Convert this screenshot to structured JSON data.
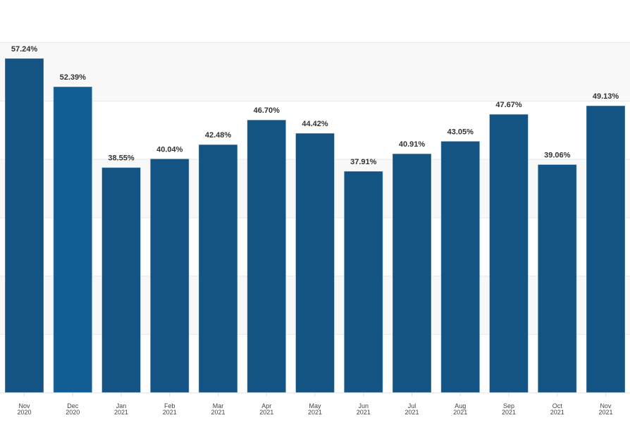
{
  "chart_data": {
    "type": "bar",
    "categories": [
      [
        "Nov",
        "2020"
      ],
      [
        "Dec",
        "2020"
      ],
      [
        "Jan",
        "2021"
      ],
      [
        "Feb",
        "2021"
      ],
      [
        "Mar",
        "2021"
      ],
      [
        "Apr",
        "2021"
      ],
      [
        "May",
        "2021"
      ],
      [
        "Jun",
        "2021"
      ],
      [
        "Jul",
        "2021"
      ],
      [
        "Aug",
        "2021"
      ],
      [
        "Sep",
        "2021"
      ],
      [
        "Oct",
        "2021"
      ],
      [
        "Nov",
        "2021"
      ]
    ],
    "values": [
      57.24,
      52.39,
      38.55,
      40.04,
      42.48,
      46.7,
      44.42,
      37.91,
      40.91,
      43.05,
      47.67,
      39.06,
      49.13
    ],
    "data_labels": [
      "57.24%",
      "52.39%",
      "38.55%",
      "40.04%",
      "42.48%",
      "46.70%",
      "44.42%",
      "37.91%",
      "40.91%",
      "43.05%",
      "47.67%",
      "39.06%",
      "49.13%"
    ],
    "ylim": [
      0,
      60
    ],
    "ygrid_step": 10,
    "grid": true,
    "title": "",
    "xlabel": "",
    "ylabel": "",
    "colors": {
      "bar": "#135485",
      "bar_highlight": "#125d94",
      "band": "#f8f8f8",
      "grid": "#e8e8e8",
      "label": "#333333"
    },
    "highlighted_index": 1
  }
}
